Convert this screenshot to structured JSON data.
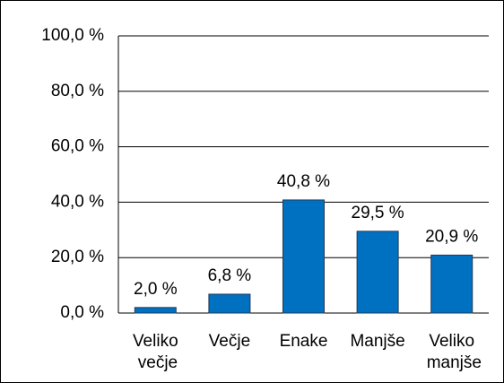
{
  "chart_data": {
    "type": "bar",
    "categories": [
      "Veliko večje",
      "Večje",
      "Enake",
      "Manjše",
      "Veliko manjše"
    ],
    "values": [
      2.0,
      6.8,
      40.8,
      29.5,
      20.9
    ],
    "value_labels": [
      "2,0 %",
      "6,8 %",
      "40,8 %",
      "29,5 %",
      "20,9 %"
    ],
    "color": "#0070c0",
    "ylim": [
      0,
      100
    ],
    "yticks": [
      {
        "value": 0,
        "label": "0,0 %"
      },
      {
        "value": 20,
        "label": "20,0 %"
      },
      {
        "value": 40,
        "label": "40,0 %"
      },
      {
        "value": 60,
        "label": "60,0 %"
      },
      {
        "value": 80,
        "label": "80,0 %"
      },
      {
        "value": 100,
        "label": "100,0 %"
      }
    ],
    "grid": true
  }
}
